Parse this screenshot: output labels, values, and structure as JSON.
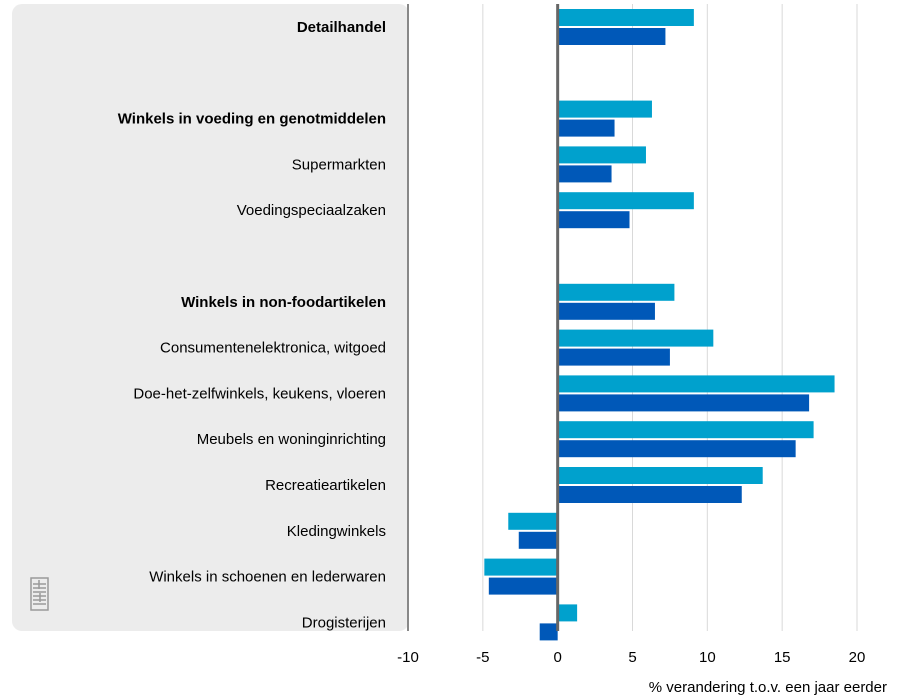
{
  "chart_data": {
    "type": "bar",
    "orientation": "horizontal",
    "xlabel": "% verandering t.o.v. een jaar eerder",
    "xlim": [
      -10,
      20
    ],
    "xticks": [
      -10,
      -5,
      0,
      5,
      10,
      15,
      20
    ],
    "grid": true,
    "colors": {
      "series1": "#00a1cd",
      "series2": "#0058b8",
      "panel": "#ececec",
      "grid": "#d9d9d9",
      "axis": "#666666"
    },
    "categories": [
      {
        "label": "Detailhandel",
        "bold": true,
        "values": [
          9.1,
          7.2
        ]
      },
      {
        "label": "",
        "bold": false,
        "values": [
          null,
          null
        ]
      },
      {
        "label": "Winkels in voeding en genotmiddelen",
        "bold": true,
        "values": [
          6.3,
          3.8
        ]
      },
      {
        "label": "Supermarkten",
        "bold": false,
        "values": [
          5.9,
          3.6
        ]
      },
      {
        "label": "Voedingspeciaalzaken",
        "bold": false,
        "values": [
          9.1,
          4.8
        ]
      },
      {
        "label": "",
        "bold": false,
        "values": [
          null,
          null
        ]
      },
      {
        "label": "Winkels in non-foodartikelen",
        "bold": true,
        "values": [
          7.8,
          6.5
        ]
      },
      {
        "label": "Consumentenelektronica, witgoed",
        "bold": false,
        "values": [
          10.4,
          7.5
        ]
      },
      {
        "label": "Doe-het-zelfwinkels, keukens, vloeren",
        "bold": false,
        "values": [
          18.5,
          16.8
        ]
      },
      {
        "label": "Meubels en woninginrichting",
        "bold": false,
        "values": [
          17.1,
          15.9
        ]
      },
      {
        "label": "Recreatieartikelen",
        "bold": false,
        "values": [
          13.7,
          12.3
        ]
      },
      {
        "label": "Kledingwinkels",
        "bold": false,
        "values": [
          -3.3,
          -2.6
        ]
      },
      {
        "label": "Winkels in schoenen en lederwaren",
        "bold": false,
        "values": [
          -4.9,
          -4.6
        ]
      },
      {
        "label": "Drogisterijen",
        "bold": false,
        "values": [
          1.3,
          -1.2
        ]
      }
    ]
  }
}
